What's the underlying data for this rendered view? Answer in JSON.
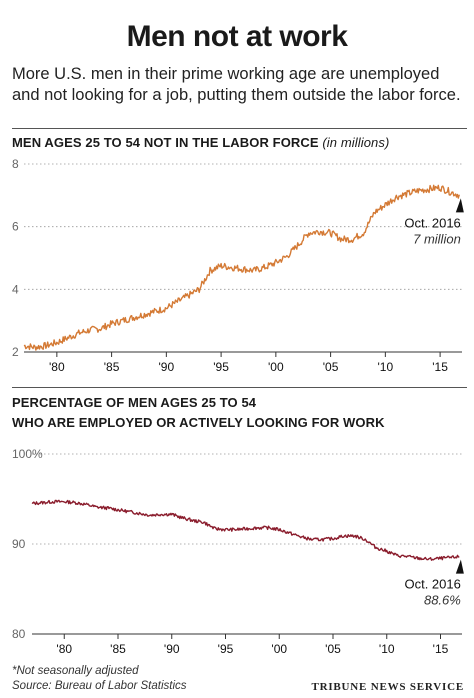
{
  "header": {
    "title": "Men not at work",
    "subtitle": "More U.S. men in their prime working age are unemployed and not looking for a job, putting them outside the labor force."
  },
  "chart1": {
    "title": "MEN AGES 25 TO 54 NOT IN THE LABOR FORCE",
    "unit": "(in millions)",
    "annotation_line1": "Oct. 2016",
    "annotation_line2": "7 million"
  },
  "chart2": {
    "title_line1": "PERCENTAGE OF MEN AGES 25 TO 54",
    "title_line2": "WHO ARE EMPLOYED OR ACTIVELY LOOKING FOR WORK",
    "annotation_line1": "Oct. 2016",
    "annotation_line2": "88.6%"
  },
  "footer": {
    "note": "*Not seasonally adjusted",
    "source": "Source: Bureau of Labor Statistics",
    "credit": "TRIBUNE NEWS SERVICE"
  },
  "colors": {
    "series1": "#d47a35",
    "series2": "#8a1c2c",
    "grid": "#999999"
  },
  "chart_data": [
    {
      "type": "line",
      "title": "MEN AGES 25 TO 54 NOT IN THE LABOR FORCE (in millions)",
      "xlabel": "",
      "ylabel": "",
      "xlim": [
        1977,
        2017
      ],
      "ylim": [
        2,
        8
      ],
      "y_ticks": [
        "2",
        "4",
        "6",
        "8"
      ],
      "x_ticks": [
        "'80",
        "'85",
        "'90",
        "'95",
        "'00",
        "'05",
        "'10",
        "'15"
      ],
      "grid": "horizontal dotted",
      "series": [
        {
          "x": [
            1977,
            1978,
            1979,
            1980,
            1981,
            1982,
            1983,
            1984,
            1985,
            1986,
            1987,
            1988,
            1989,
            1990,
            1991,
            1992,
            1993,
            1994,
            1995,
            1996,
            1997,
            1998,
            1999,
            2000,
            2001,
            2002,
            2003,
            2004,
            2005,
            2006,
            2007,
            2008,
            2009,
            2010,
            2011,
            2012,
            2013,
            2014,
            2015,
            2016,
            2016.8
          ],
          "values": [
            2.2,
            2.15,
            2.2,
            2.3,
            2.45,
            2.6,
            2.7,
            2.75,
            2.9,
            3.0,
            3.1,
            3.2,
            3.3,
            3.4,
            3.6,
            3.8,
            4.0,
            4.6,
            4.75,
            4.7,
            4.65,
            4.6,
            4.7,
            4.85,
            5.05,
            5.4,
            5.8,
            5.85,
            5.8,
            5.6,
            5.6,
            5.8,
            6.45,
            6.7,
            6.95,
            7.05,
            7.15,
            7.2,
            7.25,
            7.1,
            7.0
          ]
        }
      ],
      "annotation": {
        "x": 2016.8,
        "y": 7.0,
        "label": "Oct. 2016",
        "value_label": "7 million"
      }
    },
    {
      "type": "line",
      "title": "PERCENTAGE OF MEN AGES 25 TO 54 WHO ARE EMPLOYED OR ACTIVELY LOOKING FOR WORK",
      "xlabel": "",
      "ylabel": "",
      "xlim": [
        1977,
        2017
      ],
      "ylim": [
        80,
        100
      ],
      "y_ticks": [
        "80",
        "90",
        "100%"
      ],
      "x_ticks": [
        "'80",
        "'85",
        "'90",
        "'95",
        "'00",
        "'05",
        "'10",
        "'15"
      ],
      "grid": "horizontal dotted",
      "series": [
        {
          "x": [
            1977,
            1978,
            1979,
            1980,
            1981,
            1982,
            1983,
            1984,
            1985,
            1986,
            1987,
            1988,
            1989,
            1990,
            1991,
            1992,
            1993,
            1994,
            1995,
            1996,
            1997,
            1998,
            1999,
            2000,
            2001,
            2002,
            2003,
            2004,
            2005,
            2006,
            2007,
            2008,
            2009,
            2010,
            2011,
            2012,
            2013,
            2014,
            2015,
            2016,
            2016.8
          ],
          "values": [
            94.5,
            94.6,
            94.7,
            94.7,
            94.6,
            94.4,
            94.1,
            94.0,
            93.8,
            93.6,
            93.4,
            93.2,
            93.3,
            93.3,
            92.9,
            92.6,
            92.4,
            91.7,
            91.6,
            91.6,
            91.7,
            91.8,
            91.8,
            91.6,
            91.2,
            90.8,
            90.5,
            90.5,
            90.6,
            90.9,
            90.9,
            90.5,
            89.6,
            89.2,
            88.7,
            88.6,
            88.4,
            88.3,
            88.4,
            88.5,
            88.6
          ]
        }
      ],
      "annotation": {
        "x": 2016.8,
        "y": 88.6,
        "label": "Oct. 2016",
        "value_label": "88.6%"
      }
    }
  ]
}
